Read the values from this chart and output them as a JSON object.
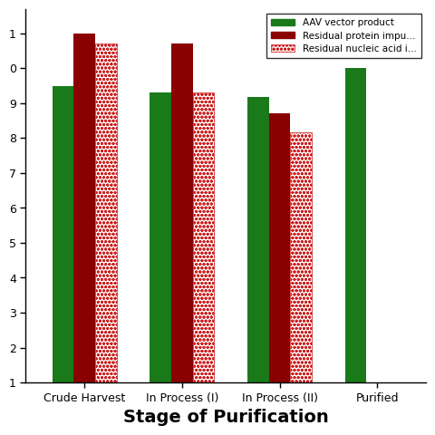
{
  "categories": [
    "Crude Harvest",
    "In Process (I)",
    "In Process (II)",
    "Purified"
  ],
  "aav_vals": [
    3000000000.0,
    2000000000.0,
    1500000000.0,
    10000000000.0
  ],
  "protein_vals": [
    100000000000.0,
    50000000000.0,
    500000000.0,
    1e-10
  ],
  "nucleic_vals": [
    50000000000.0,
    2000000000.0,
    150000000.0,
    1e-10
  ],
  "aav_color": "#1a7a1a",
  "protein_color": "#8B0000",
  "nucleic_face_color": "#ffffff",
  "nucleic_edge_color": "#cc2222",
  "nucleic_dot_color": "#cc2222",
  "xlabel": "Stage of Purification",
  "xlabel_fontsize": 14,
  "tick_fontsize": 9,
  "legend_entries": [
    "AAV vector product",
    "Residual protein impu...",
    "Residual nucleic acid i..."
  ],
  "bar_width": 0.22,
  "ylim_low": 10.0,
  "ylim_high": 500000000000.0,
  "ytick_positions": [
    10.0,
    100.0,
    1000.0,
    10000.0,
    100000.0,
    1000000.0,
    10000000.0,
    100000000.0,
    1000000000.0,
    10000000000.0,
    100000000000.0
  ],
  "background_color": "#ffffff"
}
